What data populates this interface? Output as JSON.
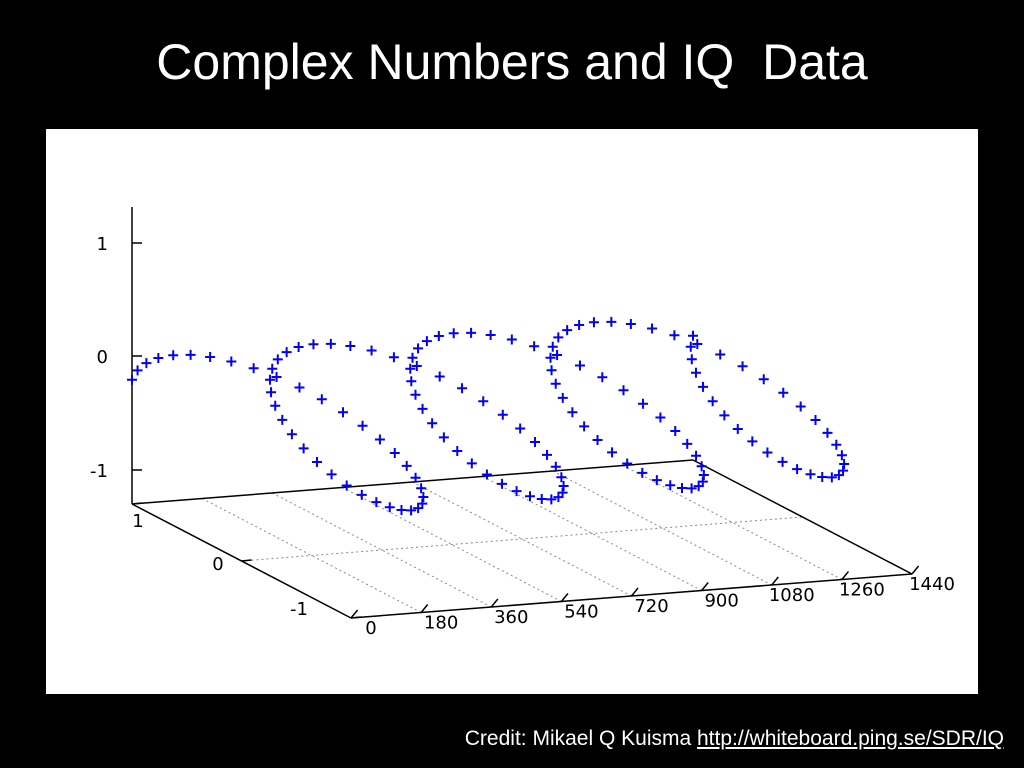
{
  "slide": {
    "title": "Complex Numbers and IQ  Data",
    "credit_prefix": "Credit: Mikael Q Kuisma ",
    "credit_link": "http://whiteboard.ping.se/SDR/IQ"
  },
  "colors": {
    "background": "#000000",
    "panel": "#ffffff",
    "series": "#0000ff",
    "axis": "#000000",
    "grid": "#888888"
  },
  "chart_data": {
    "type": "scatter",
    "title": "",
    "xlabel": "",
    "ylabel": "",
    "zlabel": "",
    "grid": true,
    "x_ticks": [
      0,
      180,
      360,
      540,
      720,
      900,
      1080,
      1260,
      1440
    ],
    "y_ticks": [
      1,
      0,
      -1
    ],
    "z_ticks": [
      1,
      0,
      -1
    ],
    "xlim": [
      0,
      1440
    ],
    "ylim": [
      -1,
      1
    ],
    "zlim": [
      -1,
      1
    ],
    "marker": "+",
    "series": [
      {
        "x_start": 0,
        "x_end": 1440,
        "x_step": 10,
        "y_function": "cos(x degrees)",
        "z_function": "sin(x degrees)"
      }
    ]
  }
}
